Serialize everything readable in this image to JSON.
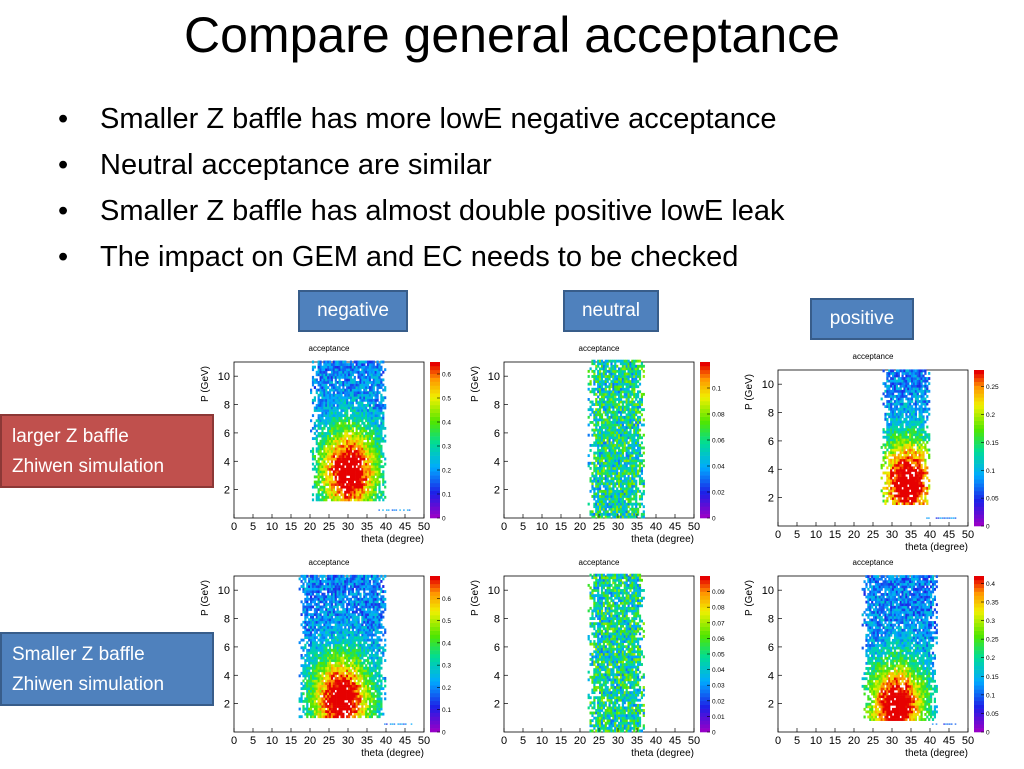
{
  "slide": {
    "title": "Compare general acceptance",
    "bullets": [
      "Smaller Z baffle has more lowE negative acceptance",
      "Neutral acceptance are similar",
      "Smaller Z baffle has almost double positive lowE leak",
      "The impact on GEM and EC needs to be checked"
    ],
    "column_labels": [
      "negative",
      "neutral",
      "positive"
    ],
    "row_labels": [
      {
        "line1": "larger Z baffle",
        "line2": "Zhiwen simulation",
        "color": "#c0504d"
      },
      {
        "line1": "Smaller Z baffle",
        "line2": "Zhiwen simulation",
        "color": "#4f81bd"
      }
    ],
    "bullet_glyph": "•"
  },
  "chart_data": [
    {
      "type": "heatmap",
      "title": "acceptance",
      "row": "larger Z baffle",
      "charge": "negative",
      "xlabel": "theta (degree)",
      "ylabel": "P (GeV)",
      "xlim": [
        0,
        50
      ],
      "ylim": [
        0,
        11
      ],
      "xticks": [
        0,
        5,
        10,
        15,
        20,
        25,
        30,
        35,
        40,
        45,
        50
      ],
      "yticks": [
        2,
        4,
        6,
        8,
        10
      ],
      "zticks": [
        0,
        0.1,
        0.2,
        0.3,
        0.4,
        0.5,
        0.6
      ],
      "zmax": 0.65,
      "theta_range": [
        20,
        40
      ],
      "p_range": [
        1.2,
        11
      ],
      "hot_center": [
        30,
        3.2
      ]
    },
    {
      "type": "heatmap",
      "title": "acceptance",
      "row": "larger Z baffle",
      "charge": "neutral",
      "xlabel": "theta (degree)",
      "ylabel": "P (GeV)",
      "xlim": [
        0,
        50
      ],
      "ylim": [
        0,
        11
      ],
      "xticks": [
        0,
        5,
        10,
        15,
        20,
        25,
        30,
        35,
        40,
        45,
        50
      ],
      "yticks": [
        2,
        4,
        6,
        8,
        10
      ],
      "zticks": [
        0,
        0.02,
        0.04,
        0.06,
        0.08,
        0.1
      ],
      "zmax": 0.12,
      "theta_range": [
        22,
        37
      ],
      "p_range": [
        0,
        11
      ],
      "hot_center": [
        29,
        6
      ]
    },
    {
      "type": "heatmap",
      "title": "acceptance",
      "row": "larger Z baffle",
      "charge": "positive",
      "xlabel": "theta (degree)",
      "ylabel": "P (GeV)",
      "xlim": [
        0,
        50
      ],
      "ylim": [
        0,
        11
      ],
      "xticks": [
        0,
        5,
        10,
        15,
        20,
        25,
        30,
        35,
        40,
        45,
        50
      ],
      "yticks": [
        2,
        4,
        6,
        8,
        10
      ],
      "zticks": [
        0,
        0.05,
        0.1,
        0.15,
        0.2,
        0.25
      ],
      "zmax": 0.28,
      "theta_range": [
        27,
        40
      ],
      "p_range": [
        1.5,
        11
      ],
      "hot_center": [
        34,
        3
      ]
    },
    {
      "type": "heatmap",
      "title": "acceptance",
      "row": "Smaller Z baffle",
      "charge": "negative",
      "xlabel": "theta (degree)",
      "ylabel": "P (GeV)",
      "xlim": [
        0,
        50
      ],
      "ylim": [
        0,
        11
      ],
      "xticks": [
        0,
        5,
        10,
        15,
        20,
        25,
        30,
        35,
        40,
        45,
        50
      ],
      "yticks": [
        2,
        4,
        6,
        8,
        10
      ],
      "zticks": [
        0,
        0.1,
        0.2,
        0.3,
        0.4,
        0.5,
        0.6
      ],
      "zmax": 0.7,
      "theta_range": [
        17,
        40
      ],
      "p_range": [
        1,
        11
      ],
      "hot_center": [
        28,
        2.2
      ]
    },
    {
      "type": "heatmap",
      "title": "acceptance",
      "row": "Smaller Z baffle",
      "charge": "neutral",
      "xlabel": "theta (degree)",
      "ylabel": "P (GeV)",
      "xlim": [
        0,
        50
      ],
      "ylim": [
        0,
        11
      ],
      "xticks": [
        0,
        5,
        10,
        15,
        20,
        25,
        30,
        35,
        40,
        45,
        50
      ],
      "yticks": [
        2,
        4,
        6,
        8,
        10
      ],
      "zticks": [
        0,
        0.01,
        0.02,
        0.03,
        0.04,
        0.05,
        0.06,
        0.07,
        0.08,
        0.09
      ],
      "zmax": 0.1,
      "theta_range": [
        22,
        37
      ],
      "p_range": [
        0,
        11
      ],
      "hot_center": [
        29,
        6
      ]
    },
    {
      "type": "heatmap",
      "title": "acceptance",
      "row": "Smaller Z baffle",
      "charge": "positive",
      "xlabel": "theta (degree)",
      "ylabel": "P (GeV)",
      "xlim": [
        0,
        50
      ],
      "ylim": [
        0,
        11
      ],
      "xticks": [
        0,
        5,
        10,
        15,
        20,
        25,
        30,
        35,
        40,
        45,
        50
      ],
      "yticks": [
        2,
        4,
        6,
        8,
        10
      ],
      "zticks": [
        0,
        0.05,
        0.1,
        0.15,
        0.2,
        0.25,
        0.3,
        0.35,
        0.4
      ],
      "zmax": 0.42,
      "theta_range": [
        22,
        42
      ],
      "p_range": [
        0.8,
        11
      ],
      "hot_center": [
        31,
        1.7
      ]
    }
  ]
}
